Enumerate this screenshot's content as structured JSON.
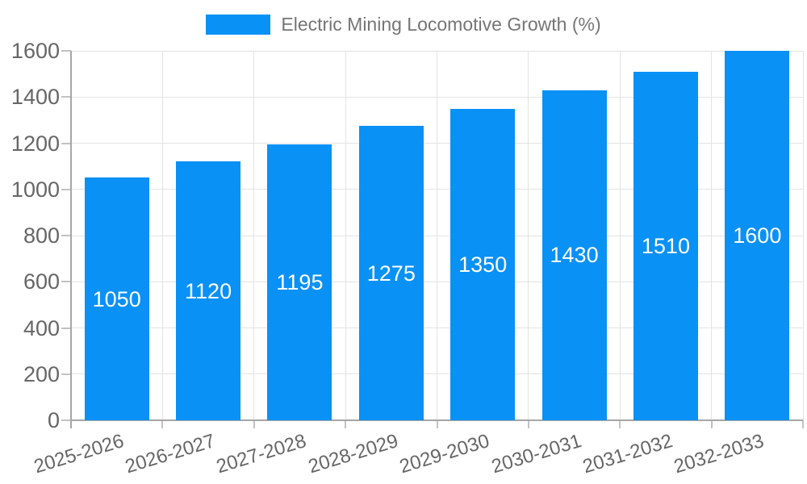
{
  "chart_data": {
    "type": "bar",
    "title": "Electric Mining Locomotive Growth (%)",
    "legend": "Electric Mining Locomotive Growth (%)",
    "legend_position": "top",
    "categories": [
      "2025-2026",
      "2026-2027",
      "2027-2028",
      "2028-2029",
      "2029-2030",
      "2030-2031",
      "2031-2032",
      "2032-2033"
    ],
    "values": [
      1050,
      1120,
      1195,
      1275,
      1350,
      1430,
      1510,
      1600
    ],
    "xlabel": "",
    "ylabel": "",
    "ylim": [
      0,
      1600
    ],
    "yticks": [
      0,
      200,
      400,
      600,
      800,
      1000,
      1200,
      1400,
      1600
    ],
    "grid": "horizontal and vertical"
  },
  "colors": {
    "bar": "#0a91f5",
    "bar_label_text": "#ffffff",
    "grid": "#e3e3e3",
    "axis_line": "#a6a6a6",
    "tick": "#c2c2c2",
    "axis_label_text": "#666666",
    "legend_text": "#757575",
    "background": "#ffffff"
  }
}
